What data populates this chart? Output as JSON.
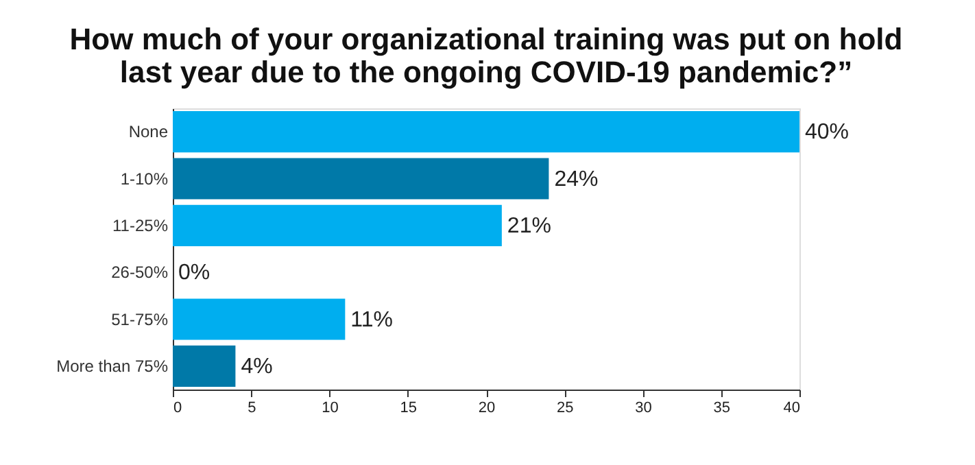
{
  "chart_data": {
    "type": "bar",
    "orientation": "horizontal",
    "title": [
      "How much of your organizational training was put on hold",
      "last year due to the ongoing COVID-19 pandemic?”"
    ],
    "categories": [
      "None",
      "1-10%",
      "11-25%",
      "26-50%",
      "51-75%",
      "More than 75%"
    ],
    "values": [
      40,
      24,
      21,
      0,
      11,
      4
    ],
    "colors": [
      "#00aeef",
      "#0079a8",
      "#00aeef",
      "#00aeef",
      "#00aeef",
      "#0079a8"
    ],
    "value_labels": [
      "40%",
      "24%",
      "21%",
      "0%",
      "11%",
      "4%"
    ],
    "xlim": [
      0,
      40
    ],
    "xticks": [
      0,
      5,
      10,
      15,
      20,
      25,
      30,
      35,
      40
    ],
    "grid": false
  }
}
